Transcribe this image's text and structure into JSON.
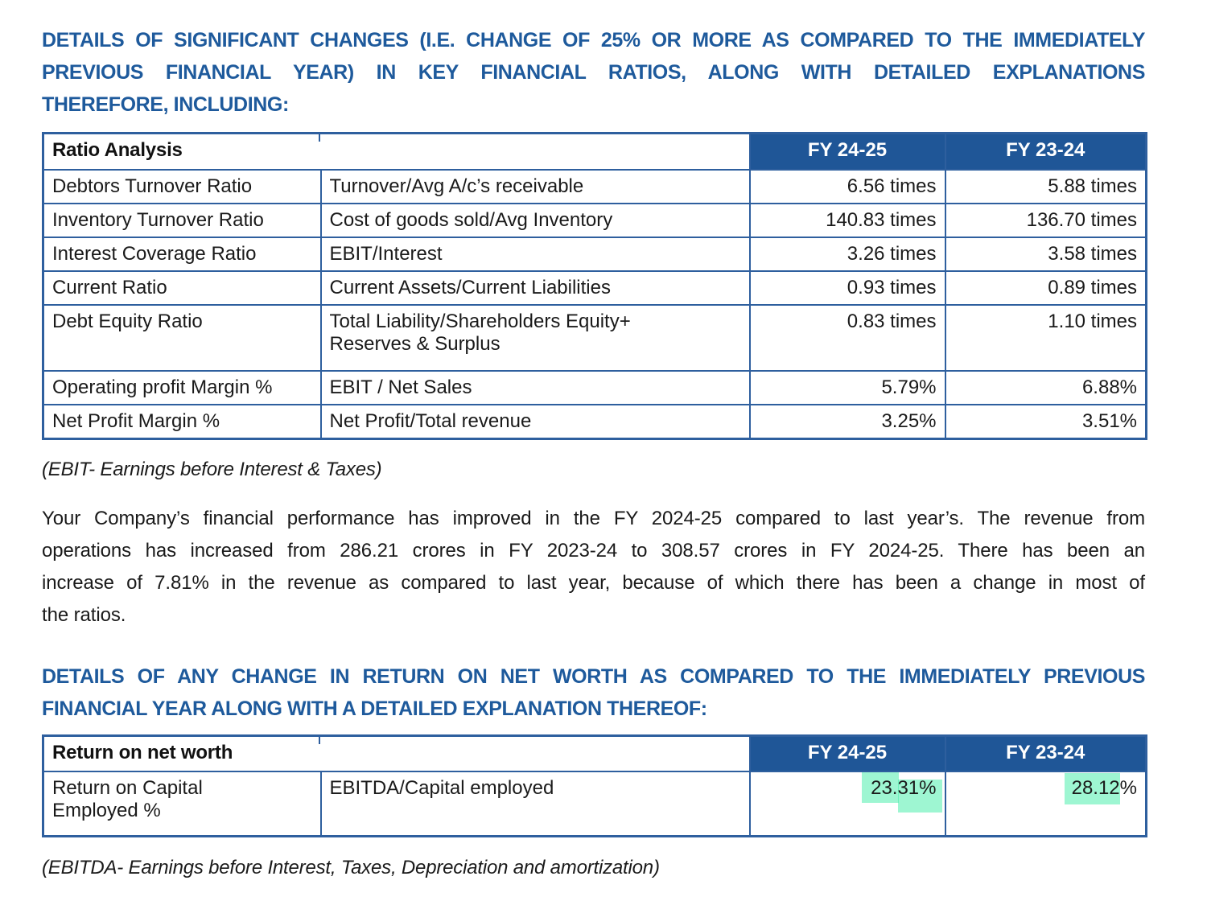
{
  "colors": {
    "heading_blue": "#1e5a9c",
    "table_header_blue": "#1f5697",
    "table_border_blue": "#2e5f9e",
    "highlight_green": "#9af4cb"
  },
  "section1": {
    "heading_lines": [
      "DETAILS OF SIGNIFICANT CHANGES (I.E. CHANGE OF 25% OR MORE AS COMPARED TO THE IMMEDIATELY",
      "PREVIOUS FINANCIAL YEAR) IN KEY FINANCIAL RATIOS, ALONG WITH DETAILED EXPLANATIONS",
      "THEREFORE, INCLUDING:"
    ],
    "table": {
      "title": "Ratio Analysis",
      "col_fy2425": "FY 24-25",
      "col_fy2324": "FY 23-24",
      "rows": [
        {
          "name": "Debtors Turnover Ratio",
          "formula": "Turnover/Avg A/c’s receivable",
          "fy2425": "6.56 times",
          "fy2324": "5.88 times"
        },
        {
          "name": "Inventory Turnover Ratio",
          "formula": "Cost of goods sold/Avg Inventory",
          "fy2425": "140.83 times",
          "fy2324": "136.70 times"
        },
        {
          "name": "Interest Coverage Ratio",
          "formula": "EBIT/Interest",
          "fy2425": "3.26 times",
          "fy2324": "3.58 times"
        },
        {
          "name": "Current Ratio",
          "formula": "Current Assets/Current Liabilities",
          "fy2425": "0.93 times",
          "fy2324": "0.89 times"
        },
        {
          "name": "Debt Equity Ratio",
          "formula": "Total Liability/Shareholders Equity+\nReserves & Surplus",
          "fy2425": "0.83 times",
          "fy2324": "1.10 times"
        },
        {
          "name": "Operating profit Margin %",
          "formula": "EBIT / Net Sales",
          "fy2425": "5.79%",
          "fy2324": "6.88%"
        },
        {
          "name": "Net Profit Margin %",
          "formula": "Net Profit/Total revenue",
          "fy2425": "3.25%",
          "fy2324": "3.51%"
        }
      ]
    },
    "footnote": "(EBIT- Earnings before Interest & Taxes)",
    "paragraph_lines": [
      "Your Company’s financial performance has improved in the FY 2024-25 compared to last year’s. The revenue from",
      "operations has increased from 286.21 crores in FY 2023-24 to 308.57 crores in FY 2024-25. There has been an",
      "increase of 7.81% in the revenue as compared to last year, because of which there has been a change in most of",
      "the ratios."
    ]
  },
  "section2": {
    "heading_lines": [
      "DETAILS OF ANY CHANGE IN RETURN ON NET WORTH AS COMPARED TO THE IMMEDIATELY PREVIOUS",
      "FINANCIAL YEAR ALONG WITH A DETAILED EXPLANATION THEREOF:"
    ],
    "table": {
      "title": "Return on net worth",
      "col_fy2425": "FY 24-25",
      "col_fy2324": "FY 23-24",
      "rows": [
        {
          "name": "Return on Capital\nEmployed %",
          "formula": "EBITDA/Capital employed",
          "fy2425": "23.31%",
          "fy2324": "28.12%"
        }
      ]
    },
    "footnote": "(EBITDA- Earnings before Interest, Taxes, Depreciation and amortization)"
  }
}
